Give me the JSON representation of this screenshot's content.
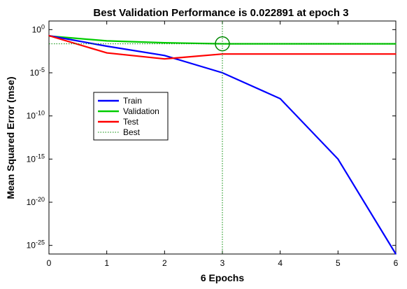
{
  "chart_data": {
    "type": "line",
    "title": "Best Validation Performance is 0.022891 at epoch 3",
    "xlabel": "6 Epochs",
    "ylabel": "Mean Squared Error  (mse)",
    "xlim": [
      0,
      6
    ],
    "ylim_log10": [
      -26,
      1
    ],
    "yscale": "log",
    "grid": false,
    "legend_placement": "middle-left",
    "x_ticks": [
      "0",
      "1",
      "2",
      "3",
      "4",
      "5",
      "6"
    ],
    "y_ticks": [
      {
        "base": "10",
        "exp": "0",
        "log10": 0
      },
      {
        "base": "10",
        "exp": "-5",
        "log10": -5
      },
      {
        "base": "10",
        "exp": "-10",
        "log10": -10
      },
      {
        "base": "10",
        "exp": "-15",
        "log10": -15
      },
      {
        "base": "10",
        "exp": "-20",
        "log10": -20
      },
      {
        "base": "10",
        "exp": "-25",
        "log10": -25
      }
    ],
    "series": [
      {
        "name": "Train",
        "color": "#0000ff",
        "style": "solid",
        "x": [
          0,
          1,
          2,
          3,
          4,
          5,
          6
        ],
        "y": [
          0.2,
          0.012,
          0.001,
          1e-05,
          1e-08,
          1e-15,
          1e-26
        ]
      },
      {
        "name": "Validation",
        "color": "#00cc00",
        "style": "solid",
        "x": [
          0,
          1,
          2,
          3,
          4,
          5,
          6
        ],
        "y": [
          0.18,
          0.05,
          0.03,
          0.022891,
          0.022891,
          0.022891,
          0.022891
        ]
      },
      {
        "name": "Test",
        "color": "#ff0000",
        "style": "solid",
        "x": [
          0,
          1,
          2,
          3,
          4,
          5,
          6
        ],
        "y": [
          0.2,
          0.002,
          0.0004,
          0.0015,
          0.0015,
          0.0015,
          0.0015
        ]
      }
    ],
    "best": {
      "name": "Best",
      "color": "#008800",
      "style": "dotted",
      "epoch": 3,
      "value": 0.022891
    }
  }
}
